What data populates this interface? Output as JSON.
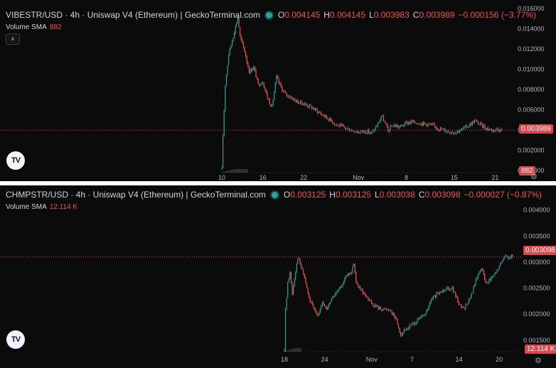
{
  "panels": [
    {
      "legend": {
        "title": "VIBESTR/USD · 4h · Uniswap V4 (Ethereum) | GeckoTerminal.com",
        "o_label": "O",
        "o": "0.004145",
        "h_label": "H",
        "h": "0.004145",
        "l_label": "L",
        "l": "0.003983",
        "c_label": "C",
        "c": "0.003989",
        "change": "−0.000156 (−3.77%)"
      },
      "volume_label": "Volume SMA",
      "volume_value": "882",
      "collapse_glyph": "˄",
      "logo_text": "TV",
      "last_price_label": "0.003989",
      "volume_badge": "882",
      "settings_icon": "gear-icon"
    },
    {
      "legend": {
        "title": "CHMPSTR/USD · 4h · Uniswap V4 (Ethereum) | GeckoTerminal.com",
        "o_label": "O",
        "o": "0.003125",
        "h_label": "H",
        "h": "0.003125",
        "l_label": "L",
        "l": "0.003038",
        "c_label": "C",
        "c": "0.003098",
        "change": "−0.000027 (−0.87%)"
      },
      "volume_label": "Volume SMA",
      "volume_value": "12.114 K",
      "collapse_glyph": "˄",
      "logo_text": "TV",
      "last_price_label": "0.003098",
      "volume_badge": "12.114 K",
      "settings_icon": "gear-icon"
    }
  ],
  "colors": {
    "up": "#26a69a",
    "down": "#ef5350",
    "axis_text": "#b2b5be",
    "bg": "#0b0b0b",
    "price_line": "#e0474c"
  },
  "chart_data": [
    {
      "type": "candlestick",
      "title": "VIBESTR/USD · 4h · Uniswap V4 (Ethereum) | GeckoTerminal.com",
      "ylim": [
        -0.0002,
        0.016
      ],
      "y_ticks": [
        "0.016000",
        "0.014000",
        "0.012000",
        "0.010000",
        "0.008000",
        "0.006000",
        "0.004000",
        "0.002000",
        "0.000000"
      ],
      "y_tick_values": [
        0.016,
        0.014,
        0.012,
        0.01,
        0.008,
        0.006,
        0.004,
        0.002,
        0.0
      ],
      "x_ticks": [
        "10",
        "16",
        "22",
        "Nov",
        "8",
        "15",
        "21"
      ],
      "x_tick_index": [
        0,
        36,
        72,
        120,
        162,
        204,
        240
      ],
      "last_price": 0.003989,
      "anchors": [
        [
          0,
          0.0001
        ],
        [
          1,
          0.0035
        ],
        [
          3,
          0.0085
        ],
        [
          6,
          0.0115
        ],
        [
          9,
          0.0128
        ],
        [
          12,
          0.0142
        ],
        [
          14,
          0.0152
        ],
        [
          16,
          0.0132
        ],
        [
          20,
          0.0118
        ],
        [
          24,
          0.0098
        ],
        [
          28,
          0.0102
        ],
        [
          32,
          0.0085
        ],
        [
          36,
          0.0088
        ],
        [
          40,
          0.0072
        ],
        [
          44,
          0.0063
        ],
        [
          48,
          0.0092
        ],
        [
          52,
          0.0082
        ],
        [
          56,
          0.0075
        ],
        [
          60,
          0.0073
        ],
        [
          66,
          0.0068
        ],
        [
          72,
          0.0066
        ],
        [
          78,
          0.0063
        ],
        [
          86,
          0.0057
        ],
        [
          94,
          0.0051
        ],
        [
          100,
          0.0046
        ],
        [
          108,
          0.0042
        ],
        [
          114,
          0.004
        ],
        [
          120,
          0.0038
        ],
        [
          126,
          0.0039
        ],
        [
          132,
          0.0037
        ],
        [
          138,
          0.0048
        ],
        [
          140,
          0.0054
        ],
        [
          142,
          0.005
        ],
        [
          146,
          0.0039
        ],
        [
          150,
          0.0045
        ],
        [
          156,
          0.0043
        ],
        [
          162,
          0.0047
        ],
        [
          168,
          0.0048
        ],
        [
          174,
          0.0047
        ],
        [
          180,
          0.0046
        ],
        [
          186,
          0.0044
        ],
        [
          192,
          0.0041
        ],
        [
          198,
          0.0039
        ],
        [
          204,
          0.0038
        ],
        [
          210,
          0.004
        ],
        [
          216,
          0.0044
        ],
        [
          222,
          0.0049
        ],
        [
          226,
          0.0046
        ],
        [
          232,
          0.0042
        ],
        [
          238,
          0.004
        ],
        [
          242,
          0.0041
        ],
        [
          246,
          0.004
        ]
      ],
      "volume_bars": [
        0,
        1,
        2,
        3,
        4,
        5,
        6,
        7,
        8,
        10,
        12,
        14,
        20,
        26,
        40,
        60,
        90
      ]
    },
    {
      "type": "candlestick",
      "title": "CHMPSTR/USD · 4h · Uniswap V4 (Ethereum) | GeckoTerminal.com",
      "ylim": [
        0.00128,
        0.0042
      ],
      "y_ticks": [
        "0.004000",
        "0.003500",
        "0.003000",
        "0.002500",
        "0.002000",
        "0.001500"
      ],
      "y_tick_values": [
        0.004,
        0.0035,
        0.003,
        0.0025,
        0.002,
        0.0015
      ],
      "x_ticks": [
        "18",
        "24",
        "Nov",
        "7",
        "14",
        "20"
      ],
      "x_tick_index": [
        0,
        36,
        78,
        114,
        156,
        192
      ],
      "last_price": 0.003098,
      "anchors": [
        [
          0,
          0.00128
        ],
        [
          1,
          0.0021
        ],
        [
          3,
          0.0026
        ],
        [
          5,
          0.0028
        ],
        [
          7,
          0.0024
        ],
        [
          9,
          0.0027
        ],
        [
          12,
          0.0031
        ],
        [
          15,
          0.0029
        ],
        [
          18,
          0.0027
        ],
        [
          20,
          0.0025
        ],
        [
          22,
          0.0023
        ],
        [
          26,
          0.0021
        ],
        [
          30,
          0.002
        ],
        [
          34,
          0.0022
        ],
        [
          38,
          0.0021
        ],
        [
          42,
          0.0023
        ],
        [
          46,
          0.0024
        ],
        [
          50,
          0.0025
        ],
        [
          54,
          0.0027
        ],
        [
          60,
          0.0028
        ],
        [
          62,
          0.003
        ],
        [
          64,
          0.0026
        ],
        [
          70,
          0.0024
        ],
        [
          78,
          0.0022
        ],
        [
          86,
          0.0021
        ],
        [
          94,
          0.0021
        ],
        [
          100,
          0.0019
        ],
        [
          104,
          0.0016
        ],
        [
          108,
          0.0017
        ],
        [
          114,
          0.0018
        ],
        [
          120,
          0.0019
        ],
        [
          126,
          0.002
        ],
        [
          132,
          0.0023
        ],
        [
          138,
          0.0024
        ],
        [
          144,
          0.0025
        ],
        [
          150,
          0.0025
        ],
        [
          156,
          0.0022
        ],
        [
          160,
          0.0021
        ],
        [
          166,
          0.0023
        ],
        [
          172,
          0.0027
        ],
        [
          176,
          0.0029
        ],
        [
          180,
          0.0026
        ],
        [
          186,
          0.0027
        ],
        [
          192,
          0.0029
        ],
        [
          196,
          0.0031
        ],
        [
          200,
          0.0031
        ],
        [
          204,
          0.0031
        ]
      ],
      "volume_bars": [
        0,
        1,
        2,
        3,
        4,
        6,
        8,
        10,
        14,
        20,
        30
      ]
    }
  ]
}
